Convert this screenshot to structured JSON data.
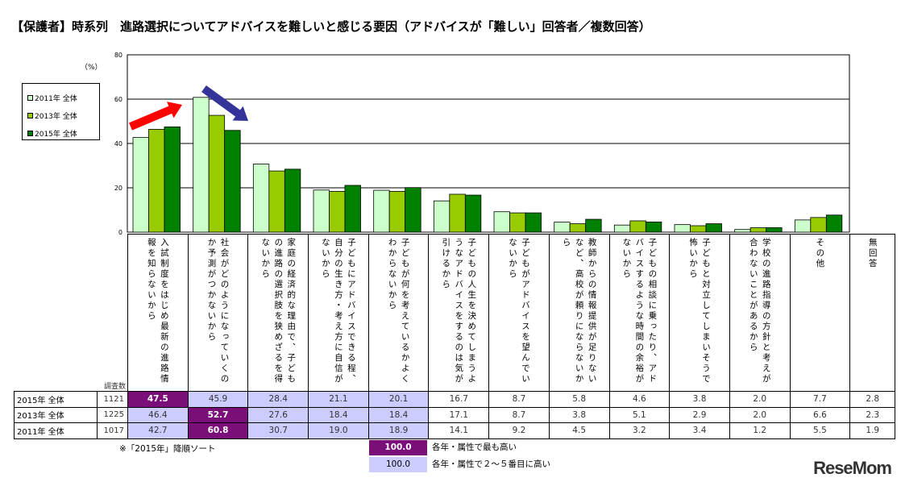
{
  "chart_data": {
    "type": "bar",
    "title": "【保護者】時系列　進路選択についてアドバイスを難しいと感じる要因（アドバイスが「難しい」回答者／複数回答）",
    "ylabel": "（%）",
    "ylim": [
      0,
      80
    ],
    "yticks": [
      "0",
      "20",
      "40",
      "60",
      "80"
    ],
    "grid": true,
    "legend_placement": "left",
    "categories": [
      "入試制度をはじめ最新の進路情報を知らないから",
      "社会がどのようになっていくのか予測がつかないから",
      "家庭の経済的な理由で、子どもの進路の選択肢を狭めざるを得ないから",
      "子どもにアドバイスできる程、自分の生き方・考え方に自信がないから",
      "子どもが何を考えているかよくわからないから",
      "子どもの人生を決めてしまうようなアドバイスをするのは気が引けるから",
      "子どもがアドバイスを望んでいないから",
      "教師からの情報提供が足りないなど、高校が頼りにならないから",
      "子どもの相談に乗ったり、アドバイスするような時間の余裕がないから",
      "子どもと対立してしまいそうで怖いから",
      "学校の進路指導の方針と考えが合わないことがあるから",
      "その他",
      "無回答"
    ],
    "series": [
      {
        "name": "2011年 全体",
        "n": "1017",
        "color": "#ccffcc",
        "values": [
          42.7,
          60.8,
          30.7,
          19.0,
          18.9,
          14.1,
          9.2,
          4.5,
          3.2,
          3.4,
          1.2,
          5.5,
          1.9
        ]
      },
      {
        "name": "2013年 全体",
        "n": "1225",
        "color": "#99cc00",
        "values": [
          46.4,
          52.7,
          27.6,
          18.4,
          18.4,
          17.1,
          8.7,
          3.8,
          5.1,
          2.9,
          2.0,
          6.6,
          2.3
        ]
      },
      {
        "name": "2015年 全体",
        "n": "1121",
        "color": "#008000",
        "values": [
          47.5,
          45.9,
          28.4,
          21.1,
          20.1,
          16.7,
          8.7,
          5.8,
          4.6,
          3.8,
          2.0,
          7.7,
          2.8
        ]
      }
    ],
    "table_order": [
      2,
      1,
      0
    ],
    "highlight": {
      "top": [
        [
          0,
          0
        ],
        [
          1,
          1
        ],
        [
          2,
          1
        ]
      ],
      "high": [
        [
          0,
          1
        ],
        [
          0,
          2
        ],
        [
          0,
          3
        ],
        [
          0,
          4
        ],
        [
          1,
          0
        ],
        [
          1,
          2
        ],
        [
          1,
          3
        ],
        [
          1,
          4
        ],
        [
          2,
          0
        ],
        [
          2,
          2
        ],
        [
          2,
          3
        ],
        [
          2,
          4
        ]
      ]
    },
    "annotations": [
      {
        "type": "arrow",
        "direction": "up",
        "color": "#ff0000"
      },
      {
        "type": "arrow",
        "direction": "down",
        "color": "#333399"
      }
    ]
  },
  "table": {
    "count_header": "調査数"
  },
  "note": "※「2015年」降順ソート",
  "key": [
    {
      "sample": "100.0",
      "label": "各年・属性で最も高い",
      "color": "#7a0f7a"
    },
    {
      "sample": "100.0",
      "label": "各年・属性で２～５番目に高い",
      "color": "#ccccff"
    }
  ],
  "logo": "ReseMom"
}
